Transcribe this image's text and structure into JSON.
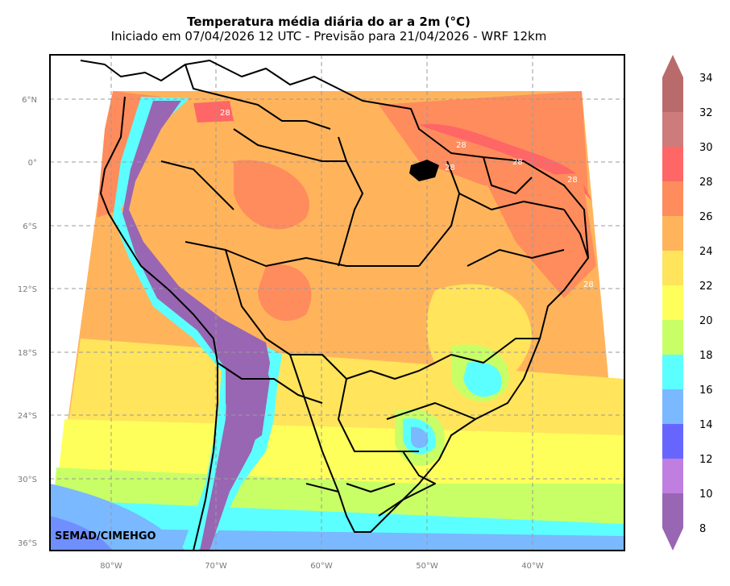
{
  "title": "Temperatura média diária do ar a 2m (°C)",
  "subtitle": "Iniciado em 07/04/2026 12 UTC - Previsão para 21/04/2026 - WRF 12km",
  "credit": "SEMAD/CIMEHGO",
  "lat_ticks": [
    "6°N",
    "0°",
    "6°S",
    "12°S",
    "18°S",
    "24°S",
    "30°S",
    "36°S"
  ],
  "lon_ticks": [
    "80°W",
    "70°W",
    "60°W",
    "50°W",
    "40°W"
  ],
  "contour_labels": [
    "28",
    "28",
    "28",
    "28",
    "28",
    "28"
  ],
  "colorbar": {
    "labels": [
      "34",
      "32",
      "30",
      "28",
      "26",
      "24",
      "22",
      "20",
      "18",
      "16",
      "14",
      "12",
      "10",
      "8"
    ],
    "colors": [
      "#b96b6b",
      "#cd7b7b",
      "#ff6666",
      "#ff8c5c",
      "#ffb45c",
      "#ffe45c",
      "#ffff5c",
      "#c8ff66",
      "#5cffff",
      "#7ab8ff",
      "#6666ff",
      "#c07fe0",
      "#9966b3"
    ]
  },
  "map_colors": {
    "warm": "#ff8c5c",
    "orange": "#ffb45c",
    "yellow": "#ffe45c",
    "lightyellow": "#ffff5c",
    "green": "#c8ff66",
    "cyan": "#5cffff",
    "blue": "#7ab8ff",
    "purple": "#9966b3",
    "hot": "#ff6666"
  }
}
